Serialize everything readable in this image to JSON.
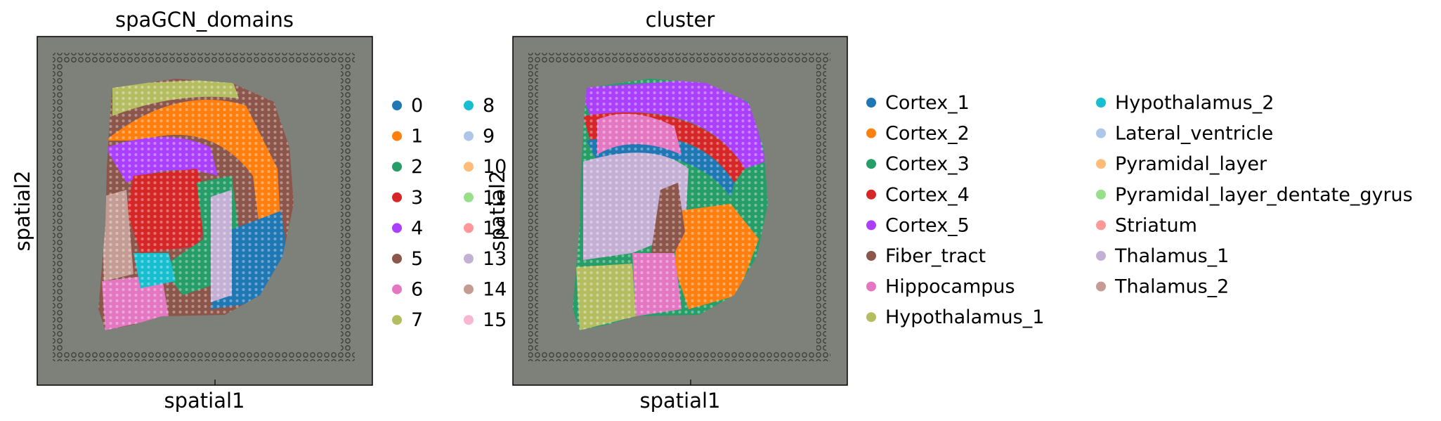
{
  "figure": {
    "panels": [
      {
        "title": "spaGCN_domains",
        "xlabel": "spatial1",
        "ylabel": "spatial2",
        "legend": [
          {
            "label": "0",
            "color": "#1f77b4"
          },
          {
            "label": "1",
            "color": "#ff7f0e"
          },
          {
            "label": "2",
            "color": "#279e68"
          },
          {
            "label": "3",
            "color": "#d62728"
          },
          {
            "label": "4",
            "color": "#aa40fc"
          },
          {
            "label": "5",
            "color": "#8c564b"
          },
          {
            "label": "6",
            "color": "#e377c2"
          },
          {
            "label": "7",
            "color": "#b5bd61"
          },
          {
            "label": "8",
            "color": "#17becf"
          },
          {
            "label": "9",
            "color": "#aec7e8"
          },
          {
            "label": "10",
            "color": "#ffbb78"
          },
          {
            "label": "11",
            "color": "#98df8a"
          },
          {
            "label": "12",
            "color": "#ff9896"
          },
          {
            "label": "13",
            "color": "#c5b0d5"
          },
          {
            "label": "14",
            "color": "#c49c94"
          },
          {
            "label": "15",
            "color": "#f7b6d2"
          }
        ]
      },
      {
        "title": "cluster",
        "xlabel": "spatial1",
        "ylabel": "spatial2",
        "legend": [
          {
            "label": "Cortex_1",
            "color": "#1f77b4"
          },
          {
            "label": "Cortex_2",
            "color": "#ff7f0e"
          },
          {
            "label": "Cortex_3",
            "color": "#279e68"
          },
          {
            "label": "Cortex_4",
            "color": "#d62728"
          },
          {
            "label": "Cortex_5",
            "color": "#aa40fc"
          },
          {
            "label": "Fiber_tract",
            "color": "#8c564b"
          },
          {
            "label": "Hippocampus",
            "color": "#e377c2"
          },
          {
            "label": "Hypothalamus_1",
            "color": "#b5bd61"
          },
          {
            "label": "Hypothalamus_2",
            "color": "#17becf"
          },
          {
            "label": "Lateral_ventricle",
            "color": "#aec7e8"
          },
          {
            "label": "Pyramidal_layer",
            "color": "#ffbb78"
          },
          {
            "label": "Pyramidal_layer_dentate_gyrus",
            "color": "#98df8a"
          },
          {
            "label": "Striatum",
            "color": "#ff9896"
          },
          {
            "label": "Thalamus_1",
            "color": "#c5b0d5"
          },
          {
            "label": "Thalamus_2",
            "color": "#c49c94"
          }
        ]
      }
    ]
  },
  "chart_data": [
    {
      "type": "scatter",
      "title": "spaGCN_domains",
      "xlabel": "spatial1",
      "ylabel": "spatial2",
      "grid": false,
      "legend_placement": "right",
      "categories": [
        "0",
        "1",
        "2",
        "3",
        "4",
        "5",
        "6",
        "7",
        "8",
        "9",
        "10",
        "11",
        "12",
        "13",
        "14",
        "15"
      ]
    },
    {
      "type": "scatter",
      "title": "cluster",
      "xlabel": "spatial1",
      "ylabel": "spatial2",
      "grid": false,
      "legend_placement": "right",
      "categories": [
        "Cortex_1",
        "Cortex_2",
        "Cortex_3",
        "Cortex_4",
        "Cortex_5",
        "Fiber_tract",
        "Hippocampus",
        "Hypothalamus_1",
        "Hypothalamus_2",
        "Lateral_ventricle",
        "Pyramidal_layer",
        "Pyramidal_layer_dentate_gyrus",
        "Striatum",
        "Thalamus_1",
        "Thalamus_2"
      ]
    }
  ]
}
